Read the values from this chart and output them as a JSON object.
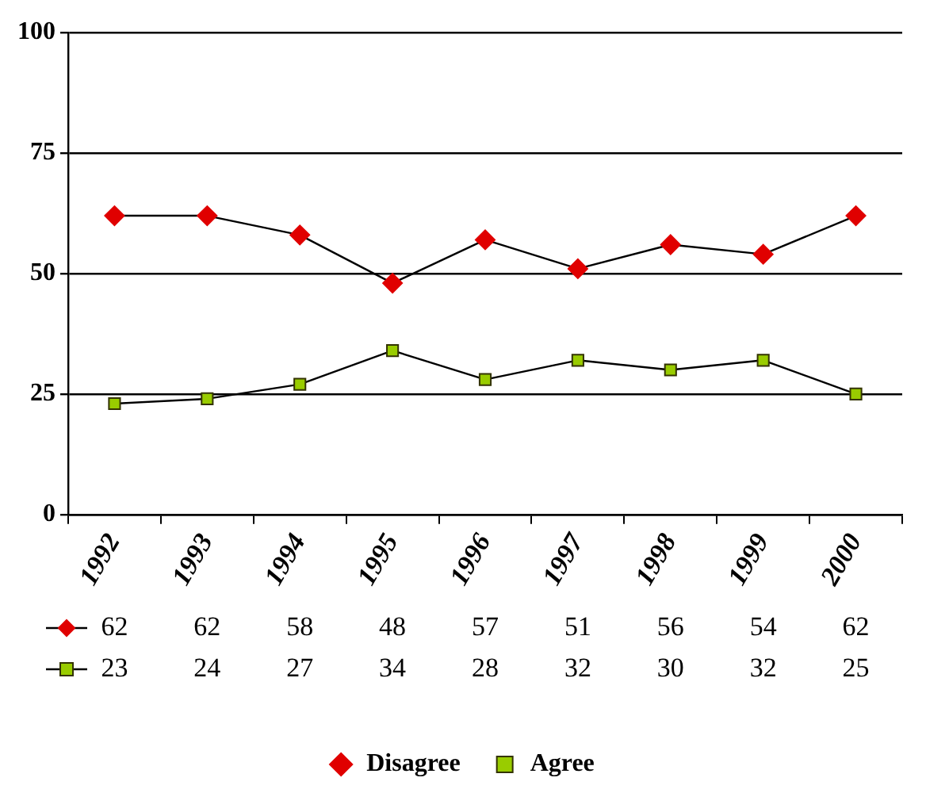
{
  "chart_data": {
    "type": "line",
    "categories": [
      "1992",
      "1993",
      "1994",
      "1995",
      "1996",
      "1997",
      "1998",
      "1999",
      "2000"
    ],
    "series": [
      {
        "name": "Disagree",
        "color": "#e00000",
        "marker": "diamond",
        "values": [
          62,
          62,
          58,
          48,
          57,
          51,
          56,
          54,
          62
        ]
      },
      {
        "name": "Agree",
        "color": "#99cc00",
        "marker": "square",
        "values": [
          23,
          24,
          27,
          34,
          28,
          32,
          30,
          32,
          25
        ]
      }
    ],
    "ylim": [
      0,
      100
    ],
    "yticks": [
      0,
      25,
      50,
      75,
      100
    ],
    "grid": "y",
    "legend": "bottom",
    "data_labels": true,
    "line_style": "solid"
  }
}
